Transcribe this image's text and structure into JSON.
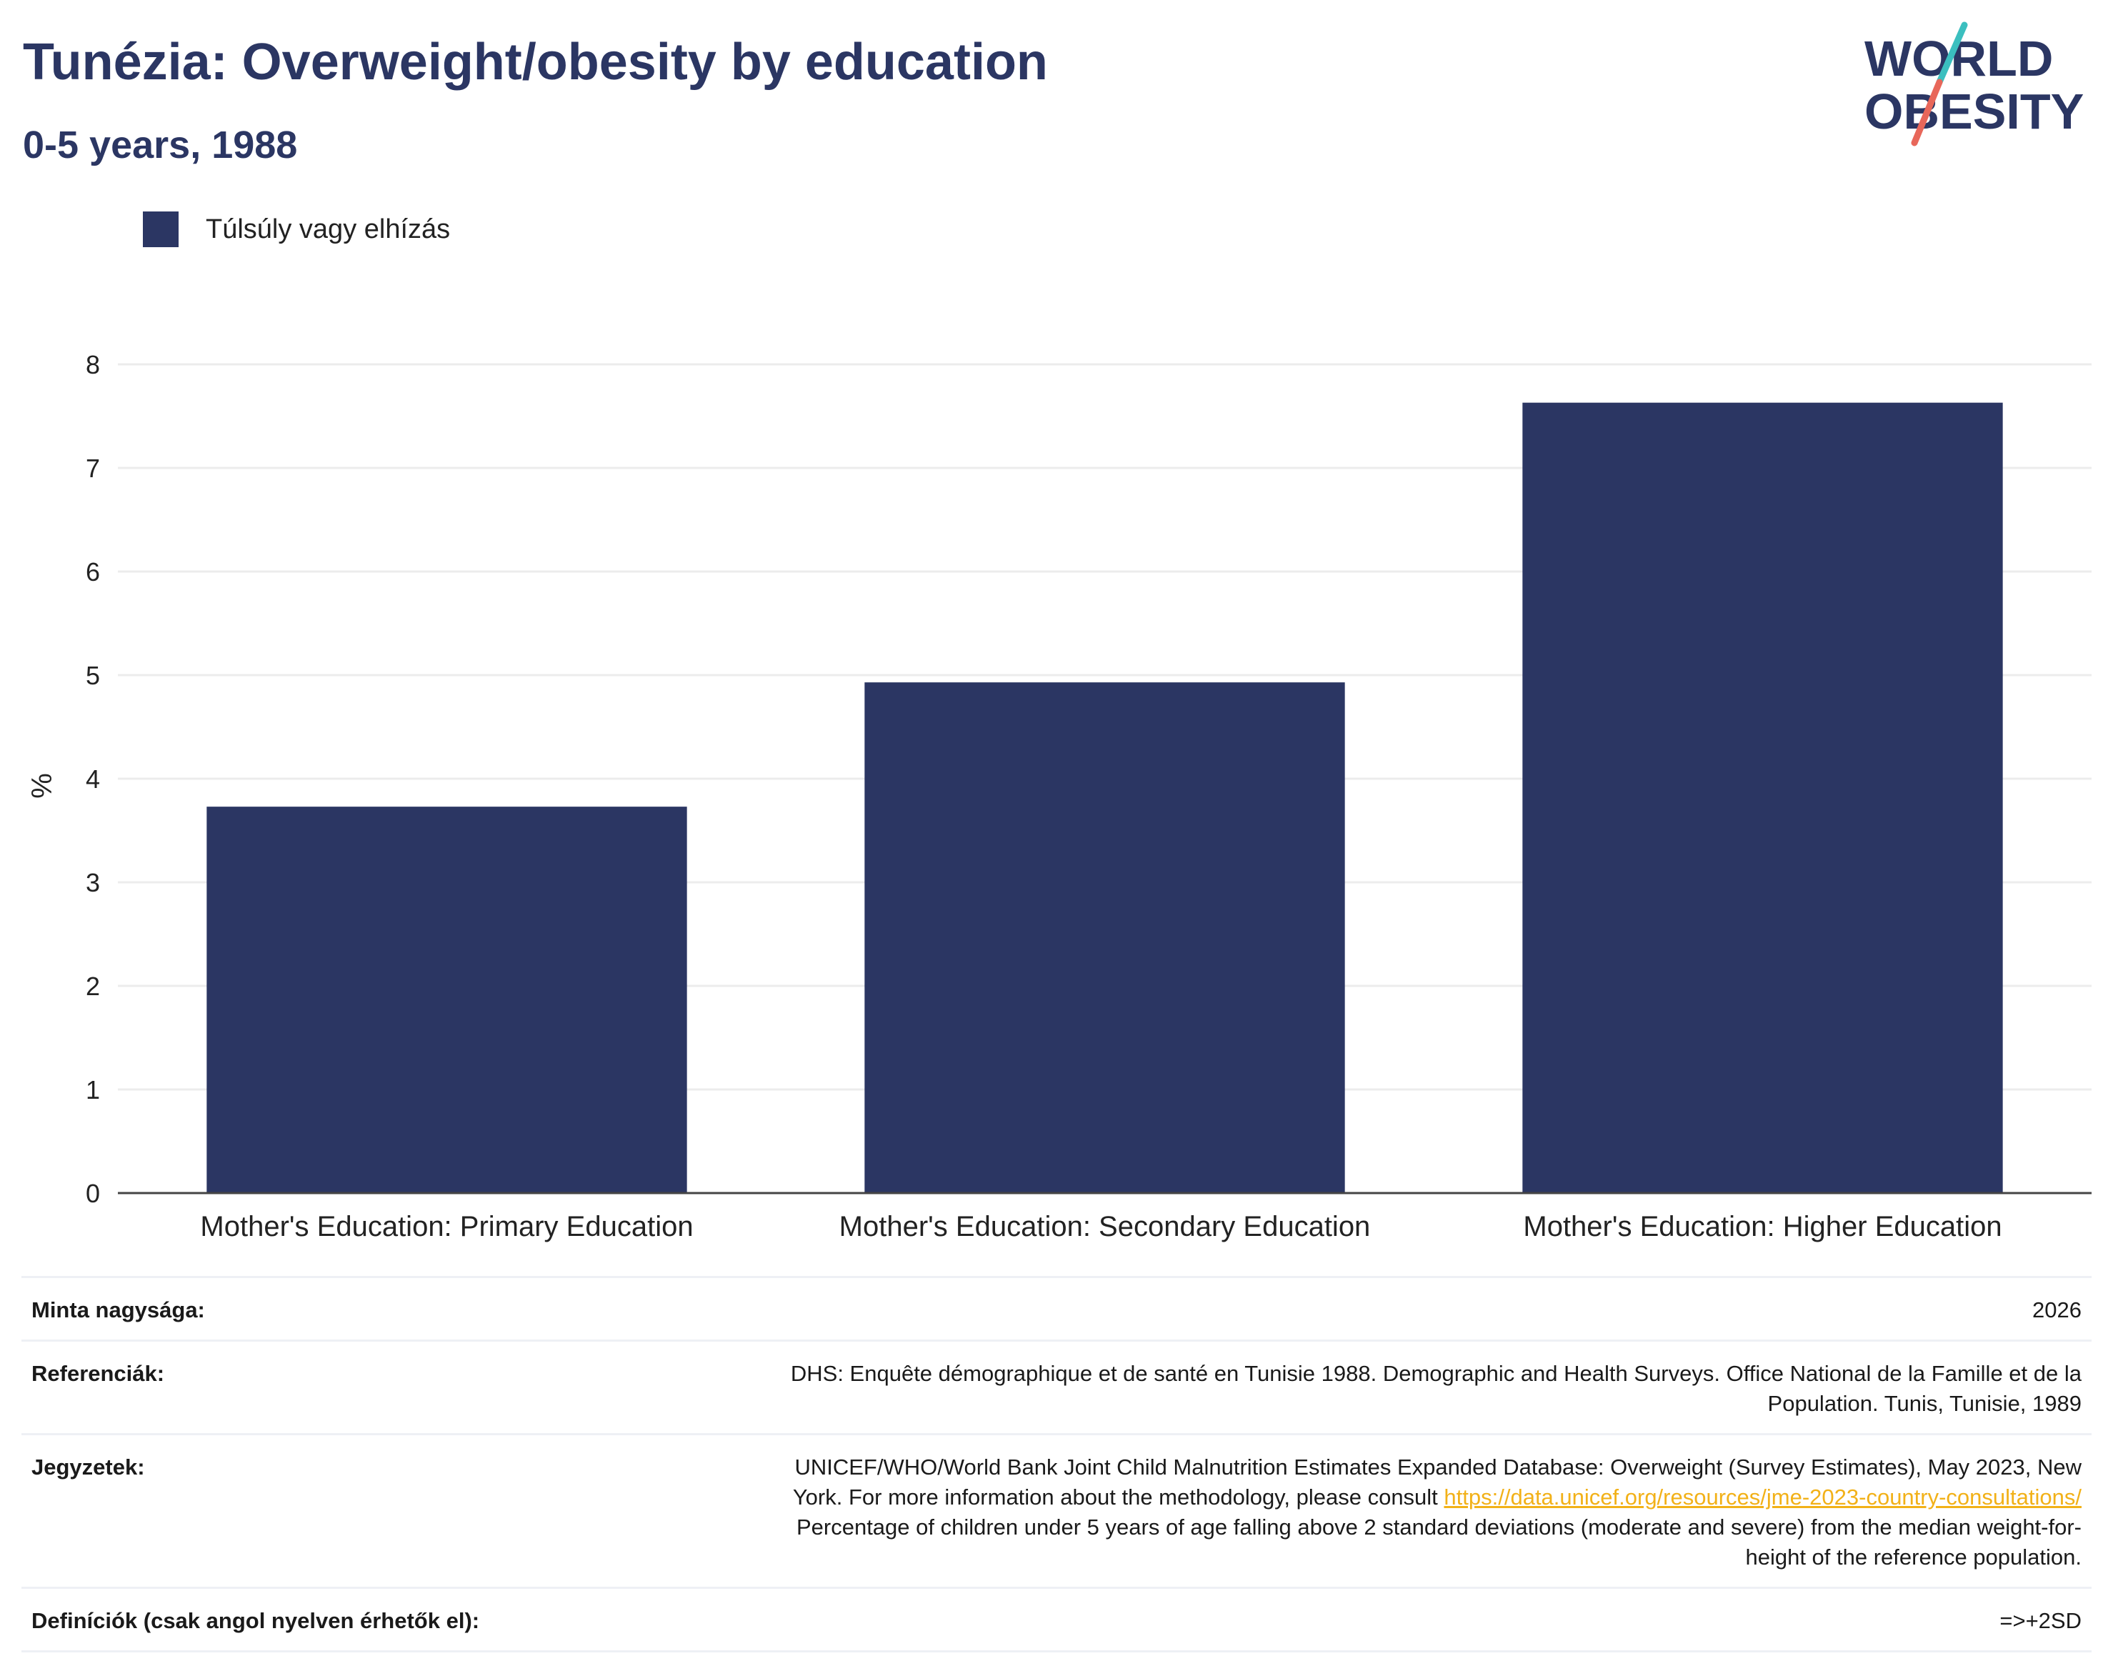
{
  "header": {
    "title": "Tunézia: Overweight/obesity by education",
    "subtitle": "0-5 years, 1988"
  },
  "logo": {
    "line1": "WORLD",
    "line2": "OBESITY",
    "accent_teal": "#3bbfbf",
    "accent_coral": "#e8675a"
  },
  "colors": {
    "bar": "#2b3663",
    "grid": "#ececec",
    "text_dark": "#2b3663",
    "link": "#f2b118"
  },
  "chart_data": {
    "type": "bar",
    "categories": [
      "Mother's Education: Primary Education",
      "Mother's Education: Secondary Education",
      "Mother's Education: Higher Education"
    ],
    "series": [
      {
        "name": "Túlsúly vagy elhízás",
        "values": [
          3.73,
          4.93,
          7.63
        ]
      }
    ],
    "ylabel": "%",
    "ylim": [
      0,
      8
    ],
    "yticks": [
      0,
      1,
      2,
      3,
      4,
      5,
      6,
      7,
      8
    ],
    "grid": true,
    "legend": "top-left"
  },
  "info": {
    "sample_size": {
      "label": "Minta nagysága:",
      "value": "2026"
    },
    "references": {
      "label": "Referenciák:",
      "line1": "DHS: Enquête démographique et de santé en Tunisie 1988. Demographic and Health Surveys. Office National de la Famille et de la",
      "line2": "Population. Tunis, Tunisie, 1989"
    },
    "notes": {
      "label": "Jegyzetek:",
      "line1": "UNICEF/WHO/World Bank Joint Child Malnutrition Estimates Expanded Database: Overweight (Survey Estimates), May 2023, New",
      "line2_prefix": "York. For more information about the methodology, please consult ",
      "link": "https://data.unicef.org/resources/jme-2023-country-consultations/",
      "line3": "Percentage of children under 5 years of age falling above 2 standard deviations (moderate and severe) from the median weight-for-",
      "line4": "height of the reference population."
    },
    "definitions": {
      "label": "Definíciók (csak angol nyelven érhetők el):",
      "value": "=>+2SD"
    }
  }
}
